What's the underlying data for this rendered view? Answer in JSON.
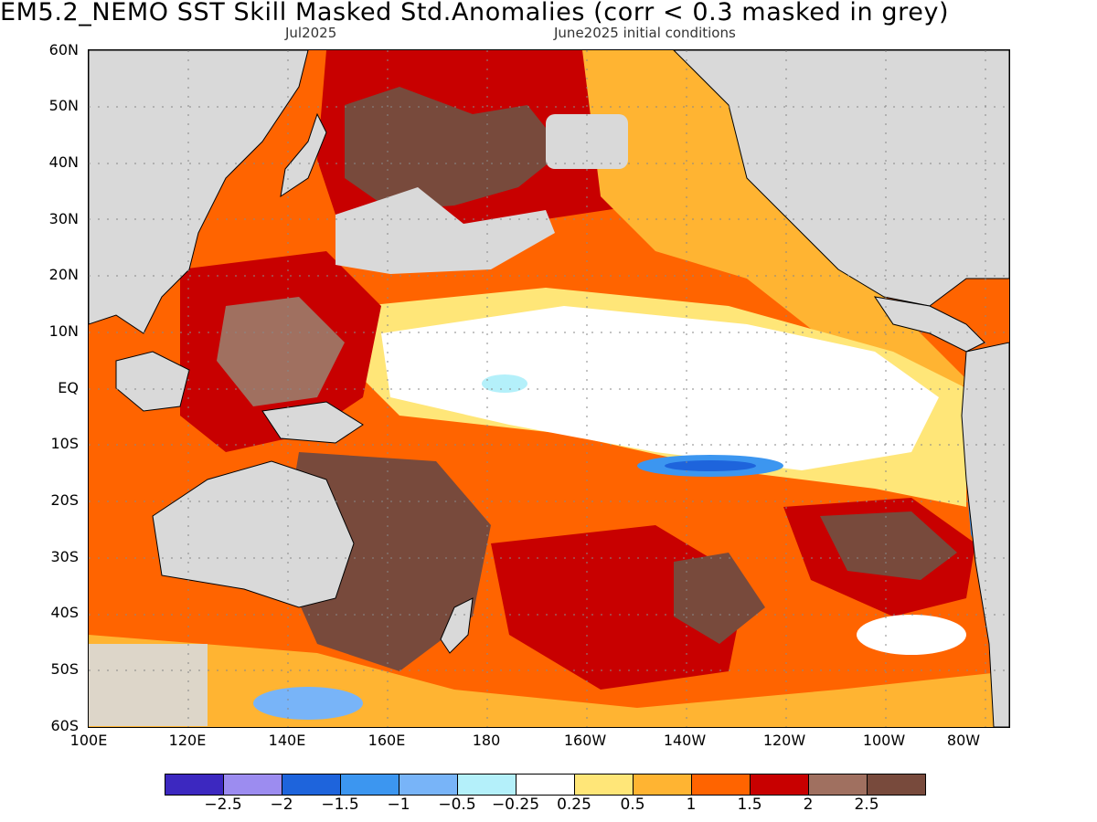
{
  "title": "EM5.2_NEMO  SST Skill Masked Std.Anomalies (corr < 0.3 masked in grey)",
  "subtitle_left": "Jul2025",
  "subtitle_right": "June2025 initial conditions",
  "lat_labels": [
    "60N",
    "50N",
    "40N",
    "30N",
    "20N",
    "10N",
    "EQ",
    "10S",
    "20S",
    "30S",
    "40S",
    "50S",
    "60S"
  ],
  "lon_labels": [
    "100E",
    "120E",
    "140E",
    "160E",
    "180",
    "160W",
    "140W",
    "120W",
    "100W",
    "80W"
  ],
  "colorbar": {
    "colors": [
      "#3c28c0",
      "#9c8cf0",
      "#1e64dc",
      "#3c96f0",
      "#78b4f8",
      "#b4f0fa",
      "#ffffff",
      "#ffe678",
      "#ffb432",
      "#ff6400",
      "#c80000",
      "#a07060",
      "#784a3c"
    ],
    "labels": [
      "−2.5",
      "−2",
      "−1.5",
      "−1",
      "−0.5",
      "−0.25",
      "0.25",
      "0.5",
      "1",
      "1.5",
      "2",
      "2.5"
    ]
  }
}
